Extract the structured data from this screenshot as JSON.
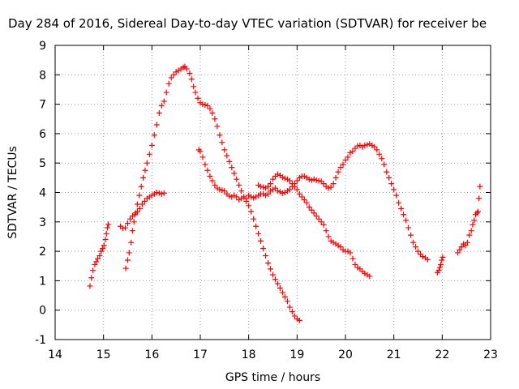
{
  "chart_data": {
    "type": "scatter",
    "title": "Day 284 of 2016, Sidereal Day-to-day VTEC variation (SDTVAR) for receiver be",
    "xlabel": "GPS time / hours",
    "ylabel": "SDTVAR / TECUs",
    "xlim": [
      14,
      23
    ],
    "ylim": [
      -1,
      9
    ],
    "xticks": [
      14,
      15,
      16,
      17,
      18,
      19,
      20,
      21,
      22,
      23
    ],
    "yticks": [
      -1,
      0,
      1,
      2,
      3,
      4,
      5,
      6,
      7,
      8,
      9
    ],
    "grid": true,
    "marker": "+",
    "color": "#ff0000",
    "series": [
      {
        "points": [
          [
            14.72,
            0.82
          ],
          [
            14.75,
            1.1
          ],
          [
            14.78,
            1.35
          ],
          [
            14.82,
            1.55
          ],
          [
            14.85,
            1.65
          ],
          [
            14.88,
            1.75
          ],
          [
            14.92,
            1.85
          ],
          [
            14.95,
            2.0
          ],
          [
            14.98,
            2.1
          ],
          [
            15.01,
            2.2
          ],
          [
            15.04,
            2.4
          ],
          [
            15.06,
            2.6
          ],
          [
            15.08,
            2.8
          ],
          [
            15.1,
            2.92
          ]
        ]
      },
      {
        "points": [
          [
            15.35,
            2.85
          ],
          [
            15.4,
            2.78
          ],
          [
            15.45,
            2.8
          ],
          [
            15.5,
            2.95
          ],
          [
            15.55,
            3.1
          ],
          [
            15.6,
            3.2
          ],
          [
            15.65,
            3.25
          ],
          [
            15.7,
            3.35
          ],
          [
            15.75,
            3.45
          ],
          [
            15.8,
            3.6
          ],
          [
            15.85,
            3.7
          ],
          [
            15.9,
            3.8
          ],
          [
            15.95,
            3.85
          ],
          [
            16.0,
            3.9
          ],
          [
            16.05,
            3.95
          ],
          [
            16.1,
            4.0
          ],
          [
            16.15,
            3.98
          ],
          [
            16.2,
            3.95
          ],
          [
            16.25,
            3.98
          ]
        ]
      },
      {
        "points": [
          [
            15.46,
            1.42
          ],
          [
            15.5,
            1.7
          ],
          [
            15.53,
            1.95
          ],
          [
            15.57,
            2.3
          ],
          [
            15.6,
            2.7
          ],
          [
            15.63,
            3.0
          ],
          [
            15.66,
            3.3
          ],
          [
            15.7,
            3.6
          ],
          [
            15.74,
            3.9
          ],
          [
            15.78,
            4.2
          ],
          [
            15.82,
            4.5
          ],
          [
            15.86,
            4.75
          ],
          [
            15.9,
            5.0
          ],
          [
            15.95,
            5.3
          ],
          [
            16.0,
            5.6
          ],
          [
            16.05,
            5.95
          ],
          [
            16.1,
            6.3
          ],
          [
            16.15,
            6.7
          ],
          [
            16.2,
            6.95
          ],
          [
            16.25,
            7.1
          ],
          [
            16.3,
            7.4
          ],
          [
            16.35,
            7.7
          ],
          [
            16.4,
            7.9
          ],
          [
            16.45,
            8.0
          ],
          [
            16.5,
            8.1
          ],
          [
            16.55,
            8.15
          ],
          [
            16.6,
            8.2
          ],
          [
            16.65,
            8.25
          ],
          [
            16.68,
            8.28
          ],
          [
            16.72,
            8.2
          ],
          [
            16.78,
            8.05
          ],
          [
            16.82,
            7.85
          ],
          [
            16.86,
            7.6
          ],
          [
            16.9,
            7.4
          ],
          [
            16.95,
            7.2
          ],
          [
            17.0,
            7.05
          ],
          [
            17.05,
            7.0
          ],
          [
            17.1,
            6.98
          ],
          [
            17.15,
            6.95
          ],
          [
            17.2,
            6.85
          ],
          [
            17.25,
            6.7
          ],
          [
            17.3,
            6.5
          ],
          [
            17.35,
            6.25
          ],
          [
            17.4,
            5.95
          ],
          [
            17.45,
            5.7
          ],
          [
            17.5,
            5.45
          ],
          [
            17.55,
            5.25
          ],
          [
            17.6,
            5.05
          ],
          [
            17.65,
            4.85
          ],
          [
            17.7,
            4.65
          ],
          [
            17.75,
            4.45
          ],
          [
            17.8,
            4.25
          ],
          [
            17.85,
            4.05
          ],
          [
            17.9,
            3.85
          ],
          [
            17.95,
            3.7
          ],
          [
            18.0,
            3.55
          ],
          [
            18.05,
            3.35
          ],
          [
            18.1,
            3.1
          ],
          [
            18.15,
            2.85
          ],
          [
            18.2,
            2.6
          ],
          [
            18.25,
            2.35
          ],
          [
            18.3,
            2.1
          ],
          [
            18.35,
            1.85
          ],
          [
            18.4,
            1.6
          ],
          [
            18.45,
            1.4
          ],
          [
            18.5,
            1.2
          ],
          [
            18.55,
            1.05
          ],
          [
            18.6,
            0.9
          ],
          [
            18.65,
            0.75
          ],
          [
            18.7,
            0.6
          ],
          [
            18.75,
            0.45
          ],
          [
            18.8,
            0.3
          ],
          [
            18.85,
            0.1
          ],
          [
            18.9,
            -0.05
          ],
          [
            18.95,
            -0.2
          ],
          [
            19.0,
            -0.3
          ],
          [
            19.05,
            -0.35
          ]
        ]
      },
      {
        "points": [
          [
            16.97,
            5.45
          ],
          [
            17.0,
            5.4
          ],
          [
            17.05,
            5.2
          ],
          [
            17.1,
            4.95
          ],
          [
            17.15,
            4.75
          ],
          [
            17.2,
            4.55
          ],
          [
            17.25,
            4.4
          ],
          [
            17.3,
            4.25
          ],
          [
            17.35,
            4.15
          ],
          [
            17.4,
            4.1
          ],
          [
            17.45,
            4.08
          ],
          [
            17.5,
            4.05
          ],
          [
            17.55,
            3.95
          ],
          [
            17.6,
            3.88
          ],
          [
            17.65,
            3.85
          ],
          [
            17.7,
            3.9
          ],
          [
            17.75,
            3.85
          ],
          [
            17.8,
            3.75
          ],
          [
            17.85,
            3.8
          ],
          [
            17.9,
            3.85
          ],
          [
            17.95,
            3.8
          ],
          [
            18.0,
            3.9
          ],
          [
            18.05,
            3.85
          ],
          [
            18.1,
            3.82
          ],
          [
            18.15,
            3.85
          ],
          [
            18.2,
            3.9
          ],
          [
            18.25,
            3.95
          ],
          [
            18.3,
            3.95
          ],
          [
            18.35,
            3.9
          ],
          [
            18.4,
            3.95
          ],
          [
            18.45,
            4.05
          ],
          [
            18.5,
            4.1
          ],
          [
            18.55,
            4.15
          ],
          [
            18.6,
            4.05
          ],
          [
            18.65,
            4.02
          ],
          [
            18.7,
            3.98
          ],
          [
            18.75,
            4.0
          ],
          [
            18.8,
            4.05
          ],
          [
            18.85,
            4.1
          ],
          [
            18.9,
            4.2
          ],
          [
            18.95,
            4.3
          ],
          [
            19.0,
            4.4
          ],
          [
            19.05,
            4.5
          ],
          [
            19.1,
            4.55
          ],
          [
            19.15,
            4.55
          ],
          [
            19.2,
            4.5
          ],
          [
            19.25,
            4.45
          ],
          [
            19.3,
            4.42
          ],
          [
            19.35,
            4.45
          ],
          [
            19.4,
            4.42
          ],
          [
            19.45,
            4.4
          ],
          [
            19.5,
            4.38
          ],
          [
            19.55,
            4.3
          ],
          [
            19.6,
            4.2
          ],
          [
            19.65,
            4.15
          ],
          [
            19.7,
            4.18
          ],
          [
            19.75,
            4.3
          ],
          [
            19.8,
            4.5
          ],
          [
            19.85,
            4.7
          ],
          [
            19.9,
            4.85
          ],
          [
            19.95,
            4.95
          ],
          [
            20.0,
            5.1
          ],
          [
            20.05,
            5.2
          ],
          [
            20.1,
            5.35
          ],
          [
            20.15,
            5.4
          ],
          [
            20.2,
            5.5
          ],
          [
            20.25,
            5.58
          ],
          [
            20.3,
            5.6
          ],
          [
            20.35,
            5.55
          ],
          [
            20.4,
            5.6
          ],
          [
            20.45,
            5.62
          ],
          [
            20.5,
            5.65
          ],
          [
            20.55,
            5.6
          ],
          [
            20.6,
            5.55
          ],
          [
            20.65,
            5.45
          ],
          [
            20.7,
            5.3
          ],
          [
            20.75,
            5.15
          ],
          [
            20.8,
            4.95
          ],
          [
            20.85,
            4.7
          ],
          [
            20.9,
            4.5
          ],
          [
            20.95,
            4.3
          ],
          [
            21.0,
            4.1
          ],
          [
            21.05,
            3.9
          ],
          [
            21.1,
            3.65
          ],
          [
            21.15,
            3.45
          ],
          [
            21.2,
            3.25
          ],
          [
            21.25,
            3.05
          ],
          [
            21.3,
            2.8
          ],
          [
            21.35,
            2.55
          ],
          [
            21.4,
            2.3
          ],
          [
            21.45,
            2.15
          ],
          [
            21.5,
            2.0
          ],
          [
            21.55,
            1.9
          ],
          [
            21.6,
            1.82
          ],
          [
            21.65,
            1.78
          ],
          [
            21.7,
            1.72
          ]
        ]
      },
      {
        "points": [
          [
            18.2,
            4.25
          ],
          [
            18.25,
            4.2
          ],
          [
            18.3,
            4.18
          ],
          [
            18.35,
            4.15
          ],
          [
            18.4,
            4.2
          ],
          [
            18.45,
            4.3
          ],
          [
            18.5,
            4.45
          ],
          [
            18.55,
            4.55
          ],
          [
            18.6,
            4.62
          ],
          [
            18.65,
            4.58
          ],
          [
            18.7,
            4.52
          ],
          [
            18.75,
            4.48
          ],
          [
            18.8,
            4.45
          ],
          [
            18.85,
            4.4
          ],
          [
            18.9,
            4.3
          ],
          [
            18.95,
            4.2
          ],
          [
            19.0,
            4.1
          ],
          [
            19.05,
            3.95
          ],
          [
            19.1,
            3.85
          ],
          [
            19.15,
            3.75
          ],
          [
            19.2,
            3.65
          ],
          [
            19.25,
            3.5
          ],
          [
            19.3,
            3.4
          ],
          [
            19.35,
            3.3
          ],
          [
            19.4,
            3.2
          ],
          [
            19.45,
            3.1
          ],
          [
            19.5,
            3.0
          ],
          [
            19.55,
            2.9
          ],
          [
            19.6,
            2.7
          ],
          [
            19.65,
            2.5
          ],
          [
            19.7,
            2.35
          ],
          [
            19.75,
            2.3
          ],
          [
            19.8,
            2.25
          ],
          [
            19.85,
            2.2
          ],
          [
            19.9,
            2.15
          ],
          [
            19.95,
            2.05
          ],
          [
            20.0,
            2.0
          ],
          [
            20.05,
            2.0
          ],
          [
            20.1,
            1.95
          ],
          [
            20.15,
            1.75
          ],
          [
            20.2,
            1.55
          ],
          [
            20.25,
            1.45
          ],
          [
            20.3,
            1.4
          ],
          [
            20.35,
            1.32
          ],
          [
            20.4,
            1.25
          ],
          [
            20.45,
            1.2
          ],
          [
            20.5,
            1.15
          ]
        ]
      },
      {
        "points": [
          [
            21.9,
            1.28
          ],
          [
            21.93,
            1.35
          ],
          [
            21.95,
            1.45
          ],
          [
            21.97,
            1.55
          ],
          [
            21.99,
            1.7
          ],
          [
            22.01,
            1.8
          ]
        ]
      },
      {
        "points": [
          [
            22.32,
            1.95
          ],
          [
            22.36,
            2.05
          ],
          [
            22.4,
            2.15
          ],
          [
            22.44,
            2.25
          ],
          [
            22.48,
            2.2
          ],
          [
            22.52,
            2.3
          ],
          [
            22.56,
            2.55
          ],
          [
            22.6,
            2.7
          ],
          [
            22.63,
            2.9
          ],
          [
            22.66,
            3.05
          ],
          [
            22.69,
            3.25
          ],
          [
            22.72,
            3.3
          ],
          [
            22.74,
            3.35
          ],
          [
            22.76,
            3.8
          ],
          [
            22.78,
            4.2
          ]
        ]
      }
    ]
  }
}
